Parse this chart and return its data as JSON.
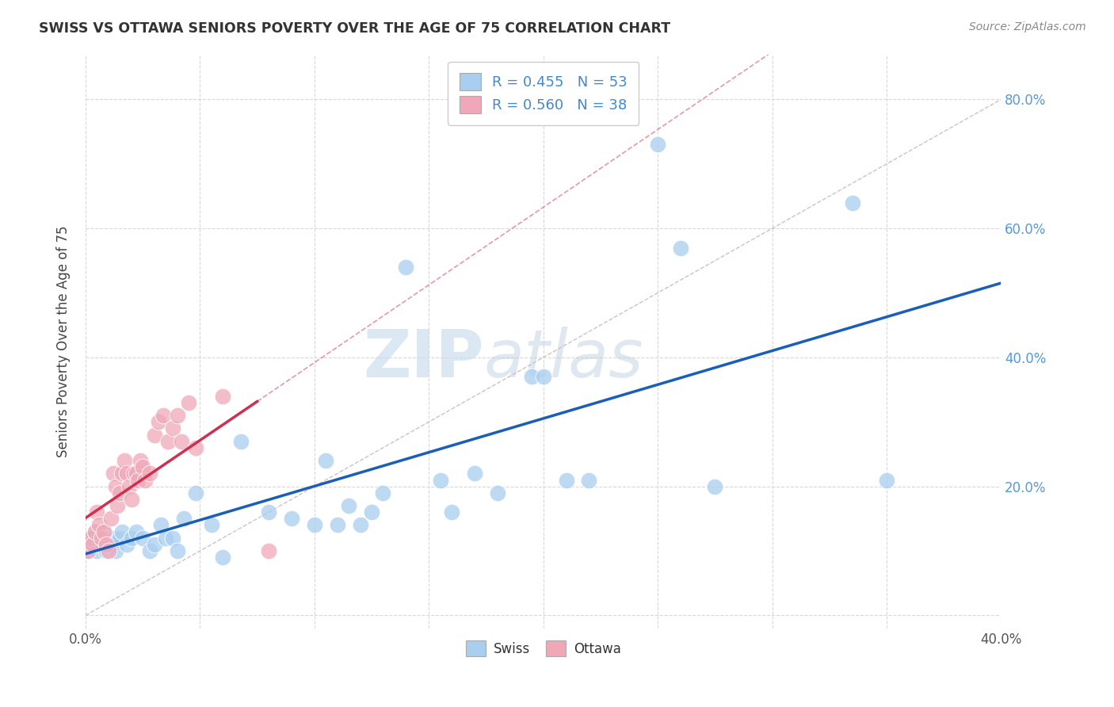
{
  "title": "SWISS VS OTTAWA SENIORS POVERTY OVER THE AGE OF 75 CORRELATION CHART",
  "source": "Source: ZipAtlas.com",
  "ylabel": "Seniors Poverty Over the Age of 75",
  "xlim": [
    0.0,
    0.4
  ],
  "ylim": [
    -0.02,
    0.87
  ],
  "xticks": [
    0.0,
    0.05,
    0.1,
    0.15,
    0.2,
    0.25,
    0.3,
    0.35,
    0.4
  ],
  "yticks": [
    0.0,
    0.2,
    0.4,
    0.6,
    0.8
  ],
  "ytick_labels_right": [
    "",
    "20.0%",
    "40.0%",
    "60.0%",
    "80.0%"
  ],
  "xtick_labels": [
    "0.0%",
    "",
    "",
    "",
    "",
    "",
    "",
    "",
    "40.0%"
  ],
  "background_color": "#ffffff",
  "grid_color": "#d8d8d8",
  "swiss_color": "#a8cef0",
  "ottawa_color": "#f0a8b8",
  "swiss_line_color": "#1a5eb8",
  "ottawa_line_color": "#d03050",
  "diagonal_color": "#d0b8b8",
  "legend_swiss_label": "R = 0.455   N = 53",
  "legend_ottawa_label": "R = 0.560   N = 38",
  "watermark_zip": "ZIP",
  "watermark_atlas": "atlas",
  "swiss_x": [
    0.001,
    0.002,
    0.003,
    0.004,
    0.005,
    0.006,
    0.007,
    0.008,
    0.009,
    0.01,
    0.011,
    0.012,
    0.013,
    0.015,
    0.016,
    0.018,
    0.02,
    0.022,
    0.025,
    0.028,
    0.03,
    0.033,
    0.035,
    0.038,
    0.04,
    0.043,
    0.048,
    0.055,
    0.06,
    0.068,
    0.08,
    0.09,
    0.1,
    0.105,
    0.11,
    0.115,
    0.12,
    0.125,
    0.13,
    0.14,
    0.155,
    0.16,
    0.17,
    0.18,
    0.195,
    0.2,
    0.21,
    0.22,
    0.25,
    0.26,
    0.275,
    0.335,
    0.35
  ],
  "swiss_y": [
    0.1,
    0.12,
    0.11,
    0.13,
    0.1,
    0.12,
    0.11,
    0.13,
    0.1,
    0.12,
    0.11,
    0.12,
    0.1,
    0.12,
    0.13,
    0.11,
    0.12,
    0.13,
    0.12,
    0.1,
    0.11,
    0.14,
    0.12,
    0.12,
    0.1,
    0.15,
    0.19,
    0.14,
    0.09,
    0.27,
    0.16,
    0.15,
    0.14,
    0.24,
    0.14,
    0.17,
    0.14,
    0.16,
    0.19,
    0.54,
    0.21,
    0.16,
    0.22,
    0.19,
    0.37,
    0.37,
    0.21,
    0.21,
    0.73,
    0.57,
    0.2,
    0.64,
    0.21
  ],
  "ottawa_x": [
    0.001,
    0.002,
    0.003,
    0.004,
    0.005,
    0.006,
    0.007,
    0.008,
    0.009,
    0.01,
    0.011,
    0.012,
    0.013,
    0.014,
    0.015,
    0.016,
    0.017,
    0.018,
    0.019,
    0.02,
    0.021,
    0.022,
    0.023,
    0.024,
    0.025,
    0.026,
    0.028,
    0.03,
    0.032,
    0.034,
    0.036,
    0.038,
    0.04,
    0.042,
    0.045,
    0.048,
    0.06,
    0.08
  ],
  "ottawa_y": [
    0.1,
    0.12,
    0.11,
    0.13,
    0.16,
    0.14,
    0.12,
    0.13,
    0.11,
    0.1,
    0.15,
    0.22,
    0.2,
    0.17,
    0.19,
    0.22,
    0.24,
    0.22,
    0.2,
    0.18,
    0.22,
    0.22,
    0.21,
    0.24,
    0.23,
    0.21,
    0.22,
    0.28,
    0.3,
    0.31,
    0.27,
    0.29,
    0.31,
    0.27,
    0.33,
    0.26,
    0.34,
    0.1
  ],
  "swiss_line": [
    0.0,
    0.4,
    0.08,
    0.4
  ],
  "ottawa_line_solid": [
    0.0,
    0.075,
    0.095,
    0.33
  ],
  "ottawa_line_dashed": [
    0.075,
    0.4,
    0.33,
    0.87
  ]
}
